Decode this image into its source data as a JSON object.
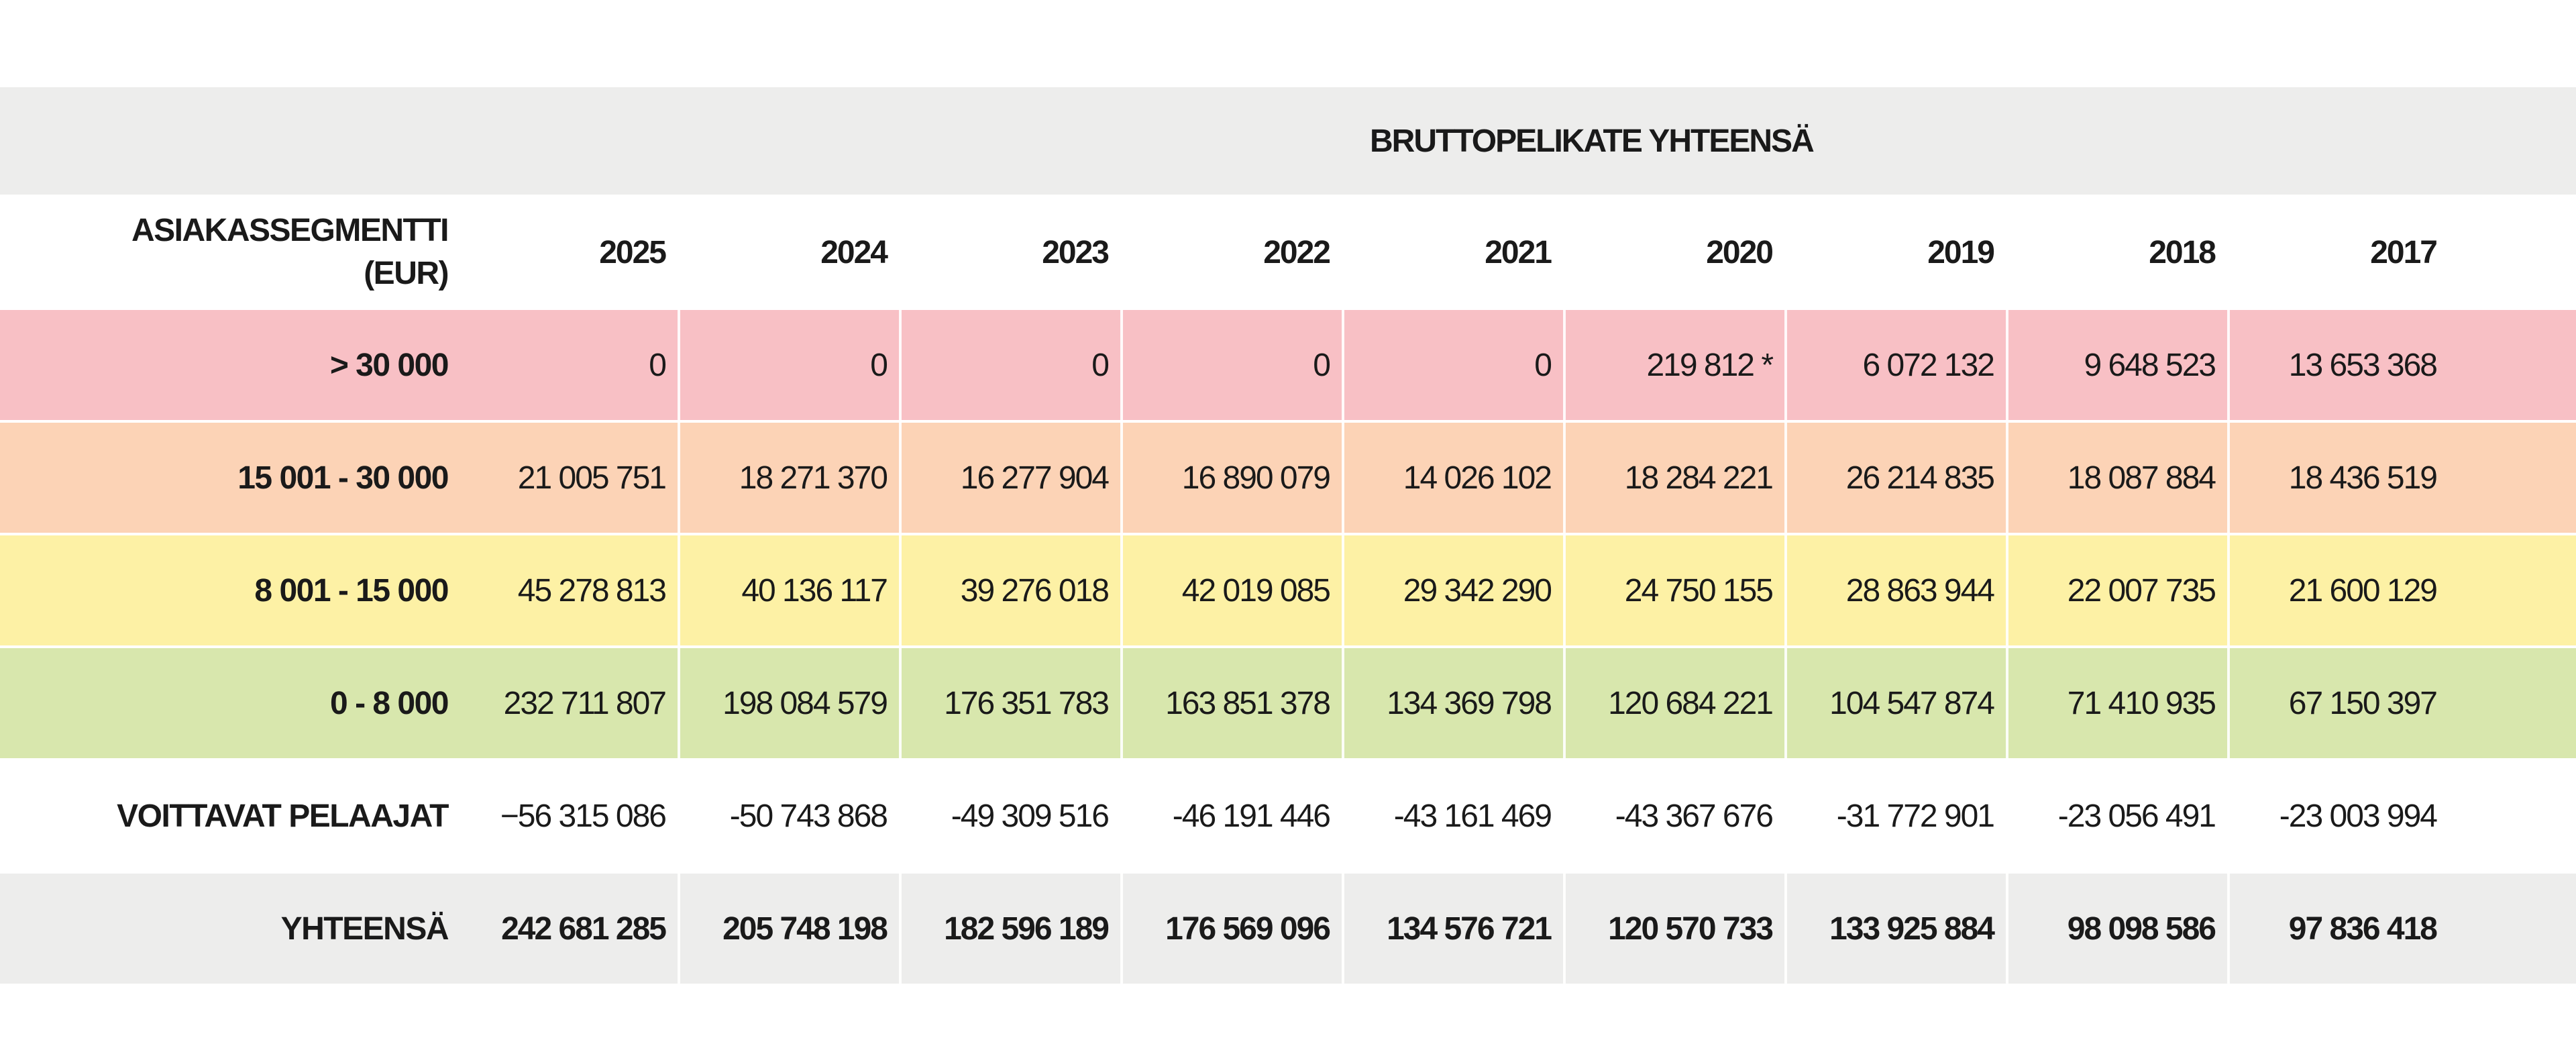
{
  "table": {
    "title": "BRUTTOPELIKATE YHTEENSÄ",
    "segment_header_line1": "ASIAKASSEGMENTTI",
    "segment_header_line2": "(EUR)",
    "years": [
      "2025",
      "2024",
      "2023",
      "2022",
      "2021",
      "2020",
      "2019",
      "2018",
      "2017"
    ],
    "segments": [
      {
        "label": "> 30 000",
        "color": "#f8c0c5",
        "values": [
          "0",
          "0",
          "0",
          "0",
          "0",
          "219 812 *",
          "6 072 132",
          "9 648 523",
          "13 653 368"
        ]
      },
      {
        "label": "15 001 - 30 000",
        "color": "#fcd3b6",
        "values": [
          "21 005 751",
          "18 271 370",
          "16 277 904",
          "16 890 079",
          "14 026 102",
          "18 284 221",
          "26 214 835",
          "18 087 884",
          "18 436 519"
        ]
      },
      {
        "label": "8 001 - 15 000",
        "color": "#fdf1a5",
        "values": [
          "45 278 813",
          "40 136 117",
          "39 276 018",
          "42 019 085",
          "29 342 290",
          "24 750 155",
          "28 863 944",
          "22 007 735",
          "21 600 129"
        ]
      },
      {
        "label": "0 - 8 000",
        "color": "#d8e7ad",
        "values": [
          "232 711 807",
          "198 084 579",
          "176 351 783",
          "163 851 378",
          "134 369 798",
          "120 684 221",
          "104 547 874",
          "71 410 935",
          "67 150 397"
        ]
      }
    ],
    "winners": {
      "label": "VOITTAVAT PELAAJAT",
      "values": [
        "−56 315 086",
        "-50 743 868",
        "-49 309 516",
        "-46 191 446",
        "-43 161 469",
        "-43 367 676",
        "-31 772 901",
        "-23 056 491",
        "-23 003 994"
      ]
    },
    "total": {
      "label": "YHTEENSÄ",
      "values": [
        "242 681 285",
        "205 748 198",
        "182 596 189",
        "176 569 096",
        "134 576 721",
        "120 570 733",
        "133 925 884",
        "98 098 586",
        "97 836 418"
      ]
    }
  }
}
